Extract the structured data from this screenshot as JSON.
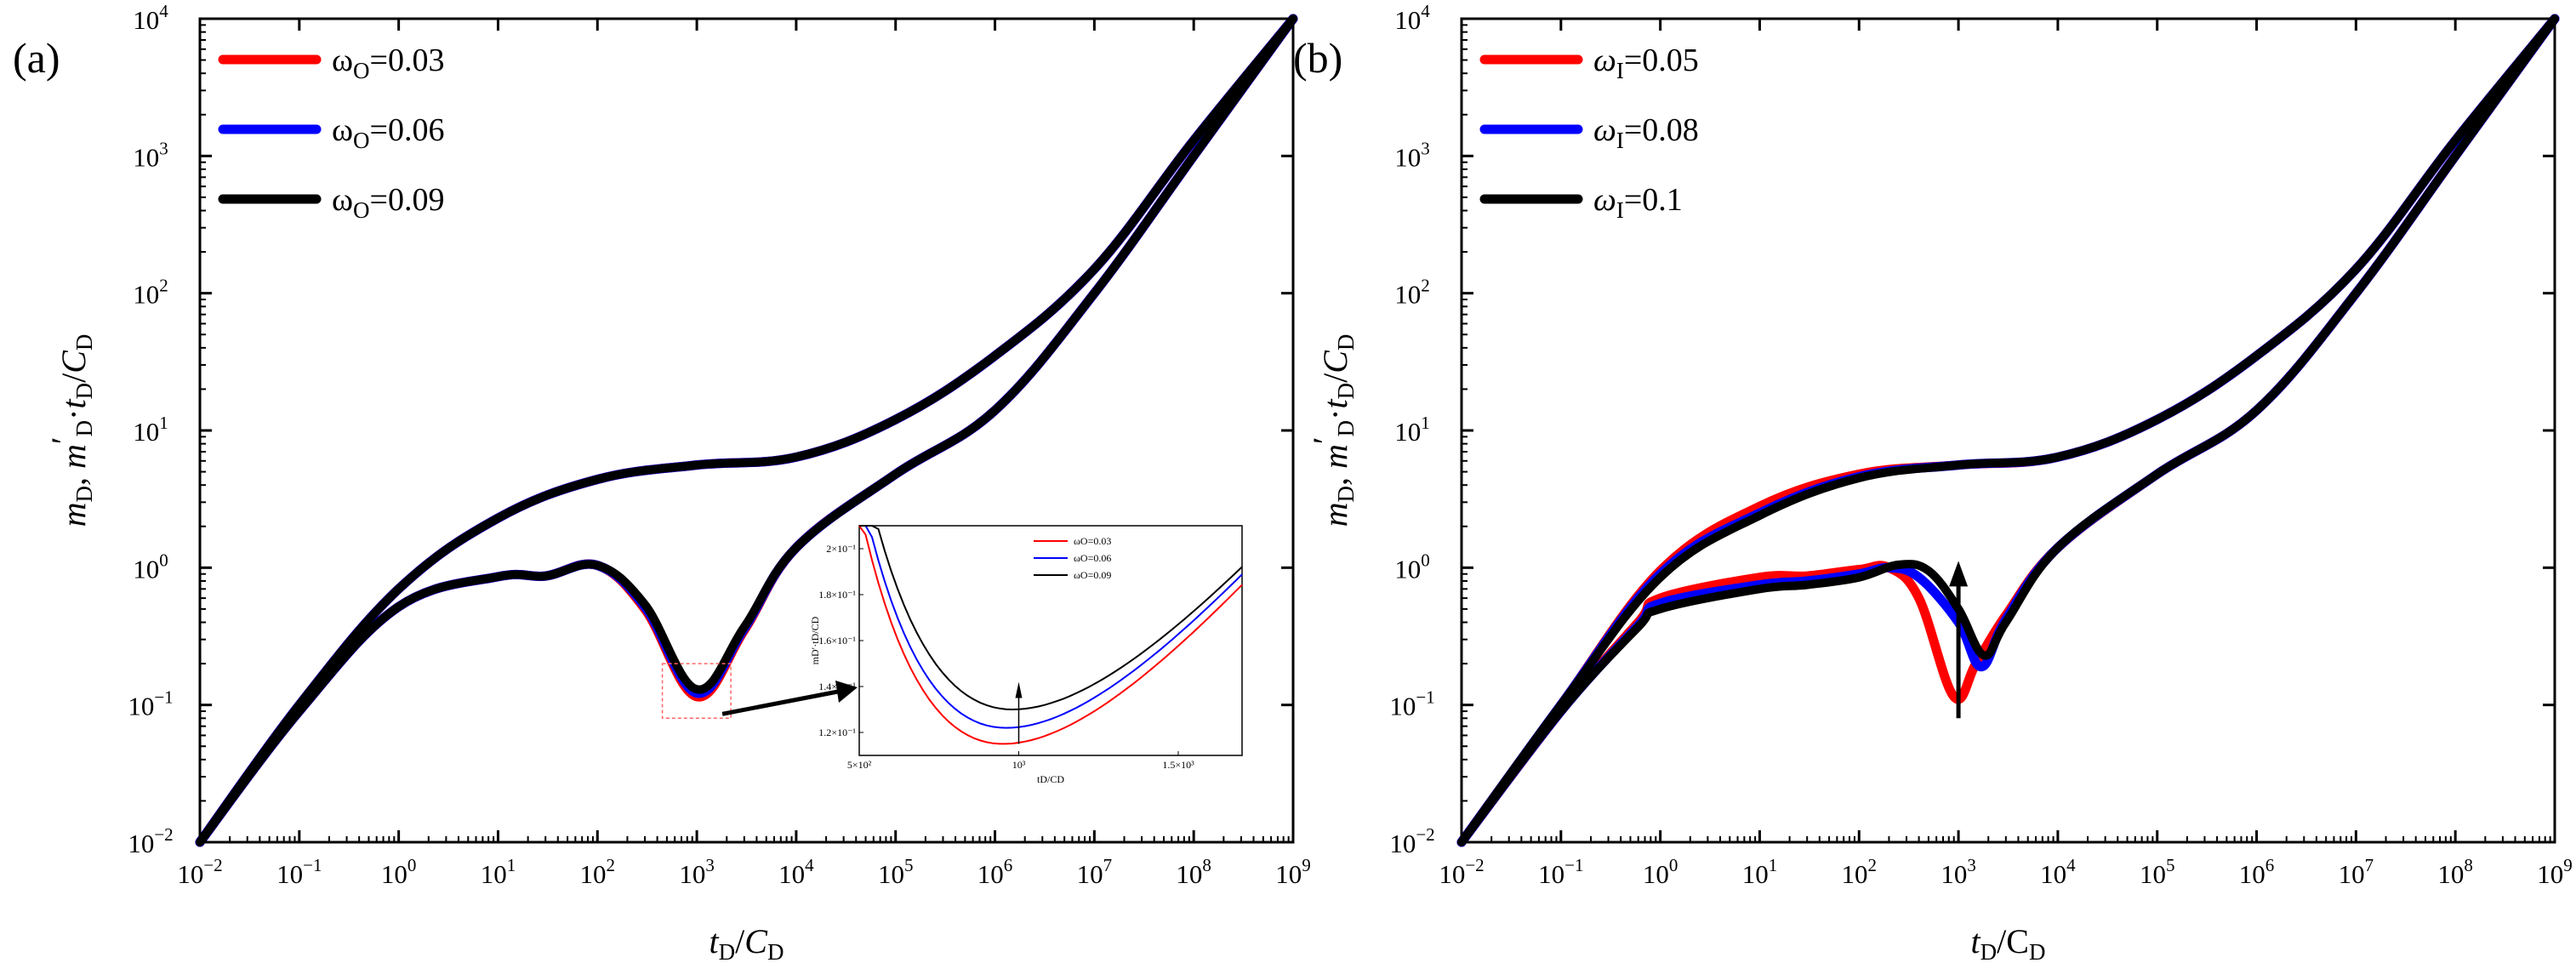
{
  "chart_data": [
    {
      "type": "line",
      "panel_label": "(a)",
      "x_scale": "log",
      "y_scale": "log",
      "xlim": [
        0.01,
        1000000000
      ],
      "ylim": [
        0.01,
        10000
      ],
      "x_ticks": [
        {
          "base": "10",
          "exp": "−2"
        },
        {
          "base": "10",
          "exp": "−1"
        },
        {
          "base": "10",
          "exp": "0"
        },
        {
          "base": "10",
          "exp": "1"
        },
        {
          "base": "10",
          "exp": "2"
        },
        {
          "base": "10",
          "exp": "3"
        },
        {
          "base": "10",
          "exp": "4"
        },
        {
          "base": "10",
          "exp": "5"
        },
        {
          "base": "10",
          "exp": "6"
        },
        {
          "base": "10",
          "exp": "7"
        },
        {
          "base": "10",
          "exp": "8"
        },
        {
          "base": "10",
          "exp": "9"
        }
      ],
      "y_ticks": [
        {
          "base": "10",
          "exp": "−2"
        },
        {
          "base": "10",
          "exp": "−1"
        },
        {
          "base": "10",
          "exp": "0"
        },
        {
          "base": "10",
          "exp": "1"
        },
        {
          "base": "10",
          "exp": "2"
        },
        {
          "base": "10",
          "exp": "3"
        },
        {
          "base": "10",
          "exp": "4"
        }
      ],
      "xlabel": {
        "t": "t",
        "sub": "D",
        "sep": "/",
        "c": "C",
        "csub": "D"
      },
      "ylabel": {
        "m": "m",
        "sub": "D",
        "sep": ", ",
        "m2": "m",
        "prime": "′",
        "sub2": "D",
        "dot": "·",
        "t": "t",
        "tsub": "D",
        "slash": "/",
        "c": "C",
        "csub": "D"
      },
      "legend_placement": "top-left",
      "series": [
        {
          "name": "ωO=0.03",
          "sym": "ω",
          "sub": "O",
          "val": "=0.03",
          "color": "#ff0000",
          "pressure": [
            [
              0.01,
              0.01
            ],
            [
              0.1,
              0.1
            ],
            [
              1,
              0.7
            ],
            [
              10,
              2.3
            ],
            [
              100,
              4.4
            ],
            [
              1000,
              5.6
            ],
            [
              10000,
              6.4
            ],
            [
              100000,
              12
            ],
            [
              1000000,
              35
            ],
            [
              10000000,
              150
            ],
            [
              100000000,
              1300
            ],
            [
              1000000000,
              10000
            ]
          ],
          "derivative": [
            [
              0.01,
              0.01
            ],
            [
              0.1,
              0.09
            ],
            [
              1,
              0.52
            ],
            [
              10,
              0.86
            ],
            [
              30,
              0.87
            ],
            [
              100,
              1.04
            ],
            [
              300,
              0.5
            ],
            [
              1000,
              0.115
            ],
            [
              3000,
              0.35
            ],
            [
              10000,
              1.4
            ],
            [
              100000,
              4.8
            ],
            [
              1000000,
              14
            ],
            [
              10000000,
              100
            ],
            [
              100000000,
              1000
            ],
            [
              1000000000,
              10000
            ]
          ]
        },
        {
          "name": "ωO=0.06",
          "sym": "ω",
          "sub": "O",
          "val": "=0.06",
          "color": "#0000ff",
          "pressure": [
            [
              0.01,
              0.01
            ],
            [
              0.1,
              0.1
            ],
            [
              1,
              0.7
            ],
            [
              10,
              2.3
            ],
            [
              100,
              4.4
            ],
            [
              1000,
              5.6
            ],
            [
              10000,
              6.4
            ],
            [
              100000,
              12
            ],
            [
              1000000,
              35
            ],
            [
              10000000,
              150
            ],
            [
              100000000,
              1300
            ],
            [
              1000000000,
              10000
            ]
          ],
          "derivative": [
            [
              0.01,
              0.01
            ],
            [
              0.1,
              0.09
            ],
            [
              1,
              0.52
            ],
            [
              10,
              0.86
            ],
            [
              30,
              0.87
            ],
            [
              100,
              1.04
            ],
            [
              300,
              0.52
            ],
            [
              1000,
              0.122
            ],
            [
              3000,
              0.36
            ],
            [
              10000,
              1.4
            ],
            [
              100000,
              4.8
            ],
            [
              1000000,
              14
            ],
            [
              10000000,
              100
            ],
            [
              100000000,
              1000
            ],
            [
              1000000000,
              10000
            ]
          ]
        },
        {
          "name": "ωO=0.09",
          "sym": "ω",
          "sub": "O",
          "val": "=0.09",
          "color": "#000000",
          "pressure": [
            [
              0.01,
              0.01
            ],
            [
              0.1,
              0.1
            ],
            [
              1,
              0.7
            ],
            [
              10,
              2.3
            ],
            [
              100,
              4.4
            ],
            [
              1000,
              5.6
            ],
            [
              10000,
              6.4
            ],
            [
              100000,
              12
            ],
            [
              1000000,
              35
            ],
            [
              10000000,
              150
            ],
            [
              100000000,
              1300
            ],
            [
              1000000000,
              10000
            ]
          ],
          "derivative": [
            [
              0.01,
              0.01
            ],
            [
              0.1,
              0.09
            ],
            [
              1,
              0.52
            ],
            [
              10,
              0.86
            ],
            [
              30,
              0.87
            ],
            [
              100,
              1.04
            ],
            [
              300,
              0.54
            ],
            [
              1000,
              0.13
            ],
            [
              3000,
              0.37
            ],
            [
              10000,
              1.4
            ],
            [
              100000,
              4.8
            ],
            [
              1000000,
              14
            ],
            [
              10000000,
              100
            ],
            [
              100000000,
              1000
            ],
            [
              1000000000,
              10000
            ]
          ]
        }
      ],
      "inset": {
        "xlim": [
          500,
          1700
        ],
        "ylim": [
          0.11,
          0.21
        ],
        "x_ticks": [
          {
            "v": 500,
            "label": "5×10²"
          },
          {
            "v": 1000,
            "label": "10³"
          },
          {
            "v": 1500,
            "label": "1.5×10³"
          }
        ],
        "y_ticks": [
          {
            "v": 0.12,
            "label": "1.2×10⁻¹"
          },
          {
            "v": 0.14,
            "label": "1.4×10⁻¹"
          },
          {
            "v": 0.16,
            "label": "1.6×10⁻¹"
          },
          {
            "v": 0.18,
            "label": "1.8×10⁻¹"
          },
          {
            "v": 0.2,
            "label": "2×10⁻¹"
          }
        ],
        "xlabel": "tD/CD",
        "ylabel": "mD′·tD/CD",
        "legend": [
          "ωO=0.03",
          "ωO=0.06",
          "ωO=0.09"
        ],
        "curves": [
          {
            "color": "#ff0000",
            "min_x": 950,
            "min_y": 0.115
          },
          {
            "color": "#0000ff",
            "min_x": 960,
            "min_y": 0.122
          },
          {
            "color": "#000000",
            "min_x": 980,
            "min_y": 0.13
          }
        ]
      }
    },
    {
      "type": "line",
      "panel_label": "(b)",
      "x_scale": "log",
      "y_scale": "log",
      "xlim": [
        0.01,
        1000000000
      ],
      "ylim": [
        0.01,
        10000
      ],
      "x_ticks": [
        {
          "base": "10",
          "exp": "−2"
        },
        {
          "base": "10",
          "exp": "−1"
        },
        {
          "base": "10",
          "exp": "0"
        },
        {
          "base": "10",
          "exp": "1"
        },
        {
          "base": "10",
          "exp": "2"
        },
        {
          "base": "10",
          "exp": "3"
        },
        {
          "base": "10",
          "exp": "4"
        },
        {
          "base": "10",
          "exp": "5"
        },
        {
          "base": "10",
          "exp": "6"
        },
        {
          "base": "10",
          "exp": "7"
        },
        {
          "base": "10",
          "exp": "8"
        },
        {
          "base": "10",
          "exp": "9"
        }
      ],
      "y_ticks": [
        {
          "base": "10",
          "exp": "−2"
        },
        {
          "base": "10",
          "exp": "−1"
        },
        {
          "base": "10",
          "exp": "0"
        },
        {
          "base": "10",
          "exp": "1"
        },
        {
          "base": "10",
          "exp": "2"
        },
        {
          "base": "10",
          "exp": "3"
        },
        {
          "base": "10",
          "exp": "4"
        }
      ],
      "xlabel": {
        "t": "t",
        "sub": "D",
        "sep": "/",
        "c": "C",
        "csub": "D"
      },
      "ylabel": {
        "m": "m",
        "sub": "D",
        "sep": ", ",
        "m2": "m",
        "prime": "′",
        "sub2": "D",
        "dot": "·",
        "t": "t",
        "tsub": "D",
        "slash": "/",
        "c": "C",
        "csub": "D"
      },
      "legend_placement": "top-left",
      "arrow": {
        "x": 1000,
        "y_from": 0.08,
        "y_to": 1.0
      },
      "series": [
        {
          "name": "ωI=0.05",
          "sym": "ω",
          "sub": "I",
          "val": "=0.05",
          "color": "#ff0000",
          "pressure": [
            [
              0.01,
              0.01
            ],
            [
              0.1,
              0.1
            ],
            [
              1,
              0.95
            ],
            [
              10,
              2.8
            ],
            [
              100,
              4.8
            ],
            [
              1000,
              5.6
            ],
            [
              10000,
              6.4
            ],
            [
              100000,
              12
            ],
            [
              1000000,
              35
            ],
            [
              10000000,
              150
            ],
            [
              100000000,
              1300
            ],
            [
              1000000000,
              10000
            ]
          ],
          "derivative": [
            [
              0.01,
              0.01
            ],
            [
              0.1,
              0.09
            ],
            [
              0.6,
              0.4
            ],
            [
              1,
              0.6
            ],
            [
              10,
              0.85
            ],
            [
              30,
              0.87
            ],
            [
              100,
              0.97
            ],
            [
              200,
              1.0
            ],
            [
              400,
              0.6
            ],
            [
              900,
              0.115
            ],
            [
              1500,
              0.2
            ],
            [
              3000,
              0.45
            ],
            [
              10000,
              1.4
            ],
            [
              100000,
              4.8
            ],
            [
              1000000,
              14
            ],
            [
              10000000,
              100
            ],
            [
              100000000,
              1000
            ],
            [
              1000000000,
              10000
            ]
          ]
        },
        {
          "name": "ωI=0.08",
          "sym": "ω",
          "sub": "I",
          "val": "=0.08",
          "color": "#0000ff",
          "pressure": [
            [
              0.01,
              0.01
            ],
            [
              0.1,
              0.1
            ],
            [
              1,
              0.9
            ],
            [
              10,
              2.5
            ],
            [
              100,
              4.6
            ],
            [
              1000,
              5.6
            ],
            [
              10000,
              6.4
            ],
            [
              100000,
              12
            ],
            [
              1000000,
              35
            ],
            [
              10000000,
              150
            ],
            [
              100000000,
              1300
            ],
            [
              1000000000,
              10000
            ]
          ],
          "derivative": [
            [
              0.01,
              0.01
            ],
            [
              0.1,
              0.09
            ],
            [
              0.6,
              0.38
            ],
            [
              1,
              0.55
            ],
            [
              10,
              0.75
            ],
            [
              30,
              0.8
            ],
            [
              100,
              0.9
            ],
            [
              200,
              1.0
            ],
            [
              400,
              0.85
            ],
            [
              1000,
              0.4
            ],
            [
              1700,
              0.19
            ],
            [
              3000,
              0.42
            ],
            [
              10000,
              1.4
            ],
            [
              100000,
              4.8
            ],
            [
              1000000,
              14
            ],
            [
              10000000,
              100
            ],
            [
              100000000,
              1000
            ],
            [
              1000000000,
              10000
            ]
          ]
        },
        {
          "name": "ωI=0.1",
          "sym": "ω",
          "sub": "I",
          "val": "=0.1",
          "color": "#000000",
          "pressure": [
            [
              0.01,
              0.01
            ],
            [
              0.1,
              0.1
            ],
            [
              1,
              0.85
            ],
            [
              10,
              2.4
            ],
            [
              100,
              4.5
            ],
            [
              1000,
              5.6
            ],
            [
              10000,
              6.4
            ],
            [
              100000,
              12
            ],
            [
              1000000,
              35
            ],
            [
              10000000,
              150
            ],
            [
              100000000,
              1300
            ],
            [
              1000000000,
              10000
            ]
          ],
          "derivative": [
            [
              0.01,
              0.01
            ],
            [
              0.1,
              0.09
            ],
            [
              0.6,
              0.37
            ],
            [
              1,
              0.5
            ],
            [
              10,
              0.7
            ],
            [
              30,
              0.75
            ],
            [
              100,
              0.85
            ],
            [
              250,
              1.05
            ],
            [
              500,
              0.95
            ],
            [
              1000,
              0.5
            ],
            [
              1800,
              0.23
            ],
            [
              3000,
              0.4
            ],
            [
              10000,
              1.4
            ],
            [
              100000,
              4.8
            ],
            [
              1000000,
              14
            ],
            [
              10000000,
              100
            ],
            [
              100000000,
              1000
            ],
            [
              1000000000,
              10000
            ]
          ]
        }
      ]
    }
  ]
}
